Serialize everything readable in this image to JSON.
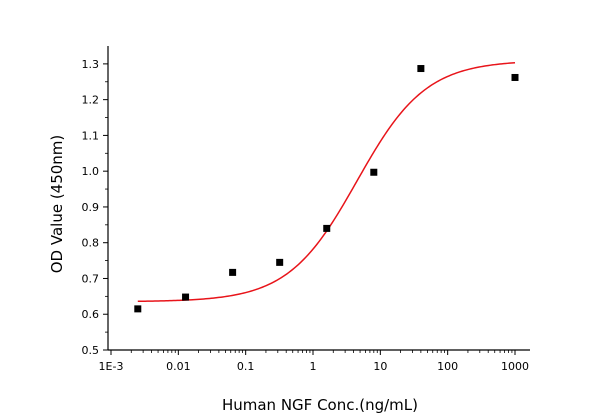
{
  "chart_data": {
    "type": "scatter",
    "xlabel": "Human NGF Conc.(ng/mL)",
    "ylabel": "OD Value (450nm)",
    "x_scale": "log",
    "xlim": [
      0.001,
      1000
    ],
    "ylim": [
      0.5,
      1.35
    ],
    "x_ticks": [
      0.001,
      0.01,
      0.1,
      1,
      10,
      100,
      1000
    ],
    "x_tick_labels": [
      "1E-3",
      "0.01",
      "0.1",
      "1",
      "10",
      "100",
      "1000"
    ],
    "y_ticks": [
      0.5,
      0.6,
      0.7,
      0.8,
      0.9,
      1.0,
      1.1,
      1.2,
      1.3
    ],
    "y_tick_labels": [
      "0.5",
      "0.6",
      "0.7",
      "0.8",
      "0.9",
      "1.0",
      "1.1",
      "1.2",
      "1.3"
    ],
    "grid": false,
    "legend": "none",
    "colors": {
      "points": "#000000",
      "curve": "#e8141a",
      "axes": "#000000"
    },
    "points": {
      "x": [
        0.0025,
        0.0128,
        0.064,
        0.32,
        1.6,
        8,
        40,
        1000
      ],
      "y": [
        0.615,
        0.648,
        0.717,
        0.745,
        0.84,
        0.997,
        1.287,
        1.262
      ]
    },
    "fit_curve": {
      "model": "4PL",
      "bottom": 0.635,
      "top": 1.31,
      "ec50": 4.5,
      "hill": 0.85
    }
  }
}
